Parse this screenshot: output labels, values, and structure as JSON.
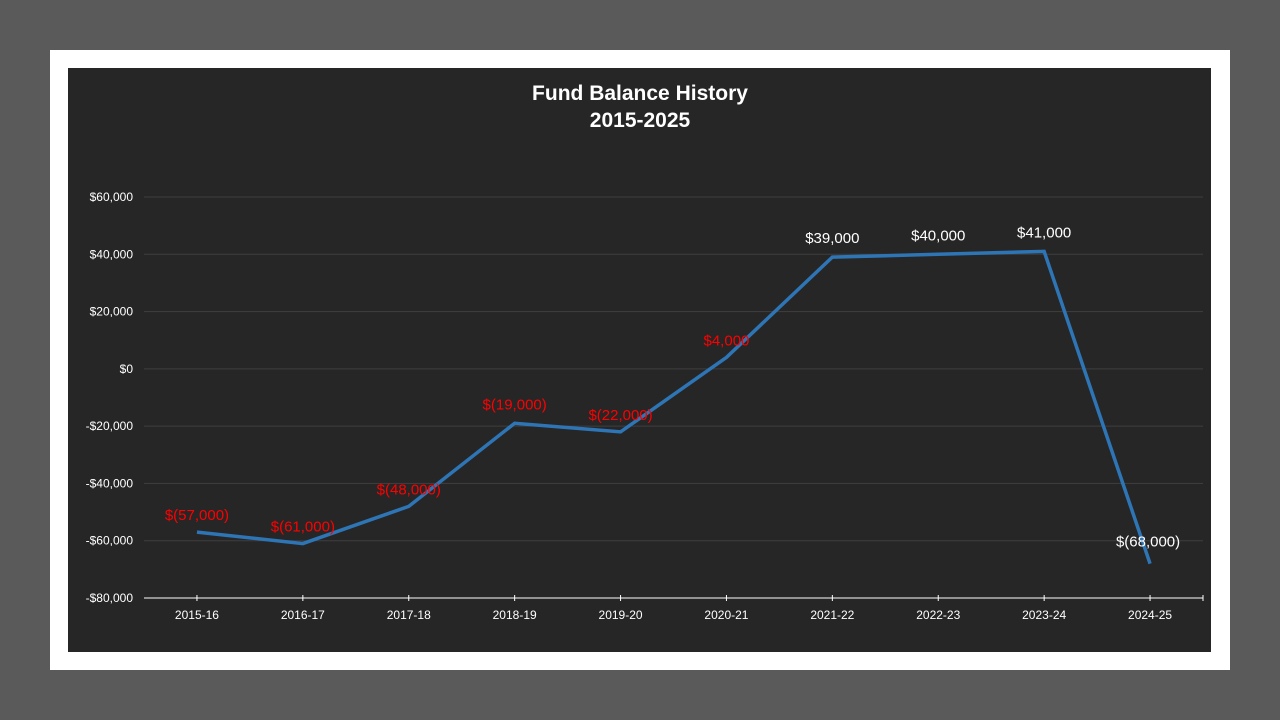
{
  "chart_data": {
    "type": "line",
    "title": "Fund Balance History",
    "subtitle": "2015-2025",
    "xlabel": "",
    "ylabel": "",
    "categories": [
      "2015-16",
      "2016-17",
      "2017-18",
      "2018-19",
      "2019-20",
      "2020-21",
      "2021-22",
      "2022-23",
      "2023-24",
      "2024-25"
    ],
    "series": [
      {
        "name": "Fund Balance",
        "color": "#2e75b6",
        "values": [
          -57000,
          -61000,
          -48000,
          -19000,
          -22000,
          4000,
          39000,
          40000,
          41000,
          -68000
        ],
        "labels": [
          "$(57,000)",
          "$(61,000)",
          "$(48,000)",
          "$(19,000)",
          "$(22,000)",
          "$4,000",
          "$39,000",
          "$40,000",
          "$41,000",
          "$(68,000)"
        ]
      }
    ],
    "ylim": [
      -80000,
      60000
    ],
    "yticks": [
      60000,
      40000,
      20000,
      0,
      -20000,
      -40000,
      -60000,
      -80000
    ],
    "ytick_labels": [
      "$60,000",
      "$40,000",
      "$20,000",
      "$0",
      "-$20,000",
      "-$40,000",
      "-$60,000",
      "-$80,000"
    ],
    "grid": true,
    "legend": "none",
    "label_colors": {
      "negative_or_low": "#ff0000",
      "positive": "#ffffff",
      "last_point": "#ffffff"
    }
  },
  "colors": {
    "page_bg": "#5a5a5a",
    "frame": "#ffffff",
    "chart_bg": "#262626",
    "gridline": "#3f3f3f",
    "axis": "#ffffff",
    "line": "#2e75b6"
  }
}
